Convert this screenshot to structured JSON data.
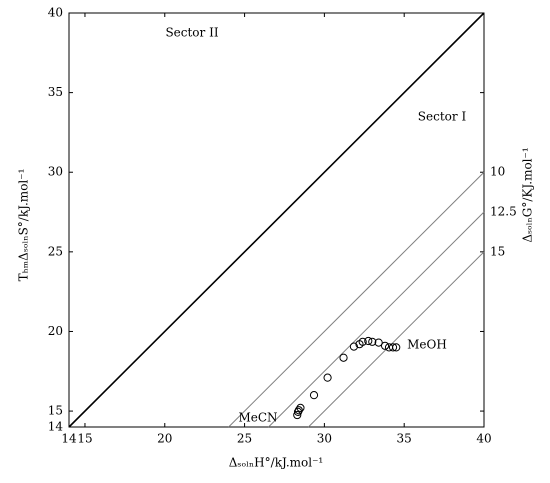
{
  "chart_data": {
    "type": "scatter",
    "x_label": "ΔₛₒₗₙH°/kJ.mol⁻¹",
    "y_label": "TₕₘΔₛₒₗₙS°/kJ.mol⁻¹",
    "y2_label": "ΔₛₒₗₙG°/KJ.mol⁻¹",
    "xlim": [
      14,
      40
    ],
    "ylim": [
      14,
      40
    ],
    "xticks": [
      14,
      15,
      20,
      25,
      30,
      35,
      40
    ],
    "yticks": [
      14,
      15,
      20,
      25,
      30,
      35,
      40
    ],
    "x": [
      28.3,
      28.35,
      28.4,
      28.5,
      29.35,
      30.2,
      31.2,
      31.85,
      32.2,
      32.4,
      32.75,
      33.0,
      33.4,
      33.8,
      34.05,
      34.3,
      34.5
    ],
    "y": [
      14.75,
      14.95,
      15.05,
      15.2,
      16.0,
      17.1,
      18.35,
      19.05,
      19.2,
      19.35,
      19.4,
      19.35,
      19.3,
      19.1,
      19.0,
      19.0,
      19.0
    ],
    "marker_color": "#000000",
    "iso_g_lines": {
      "values": [
        10,
        12.5,
        15
      ],
      "color": "#808080"
    },
    "annotations": [
      "Sector II",
      "Sector I",
      "MeOH",
      "MeCN"
    ]
  }
}
